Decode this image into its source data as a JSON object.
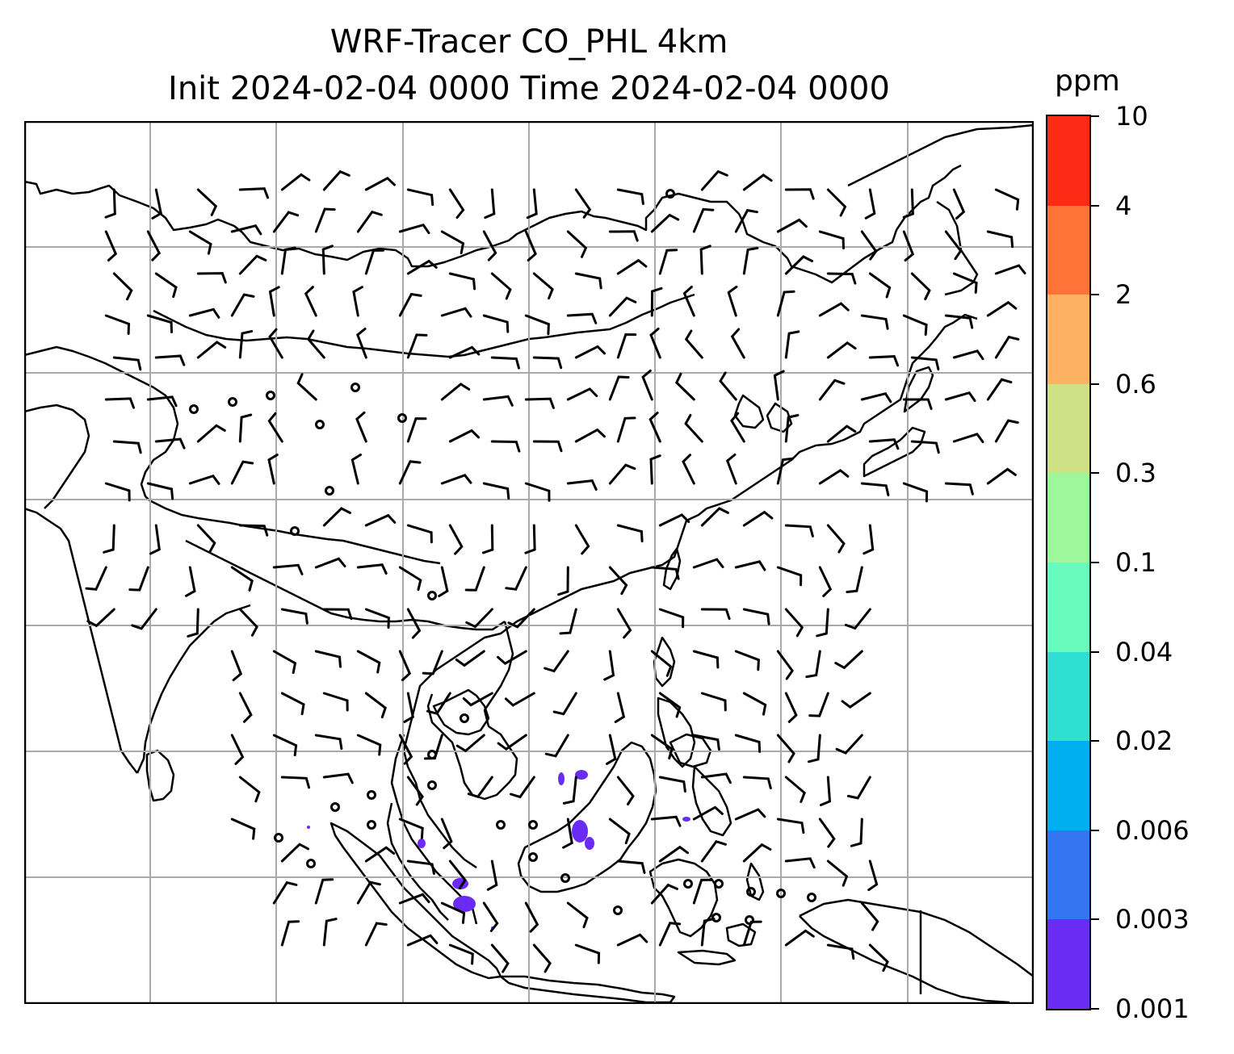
{
  "title": {
    "line1": "WRF-Tracer CO_PHL 4km",
    "line2": "Init 2024-02-04 0000 Time 2024-02-04 0000"
  },
  "colorbar": {
    "unit": "ppm",
    "levels": [
      "0.001",
      "0.003",
      "0.006",
      "0.02",
      "0.04",
      "0.1",
      "0.3",
      "0.6",
      "2",
      "4",
      "10"
    ],
    "colors": [
      "#6a2bf5",
      "#3476f2",
      "#00b0ee",
      "#2fe0d2",
      "#67fbbd",
      "#9df79b",
      "#cfe087",
      "#fcb262",
      "#fe7338",
      "#ff2a16"
    ]
  },
  "map": {
    "grid": "on",
    "basemap": "coastlines and country borders",
    "overlay": "wind barbs",
    "tracer_shading_color": "#6a2bf5"
  }
}
